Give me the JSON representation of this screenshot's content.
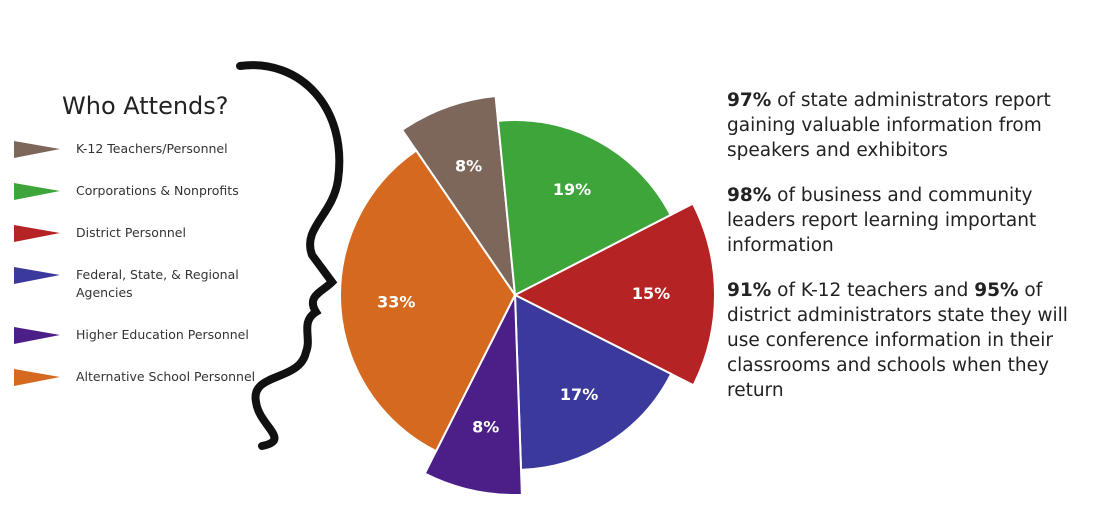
{
  "chart_data": {
    "type": "pie",
    "title": "Who Attends?",
    "categories": [
      "K-12 Teachers/Personnel",
      "Corporations  & Nonprofits",
      "District Personnel",
      "Federal, State, & Regional Agencies",
      "Higher Education Personnel",
      "Alternative School Personnel"
    ],
    "values": [
      8,
      19,
      15,
      17,
      8,
      33
    ],
    "value_labels": [
      "8%",
      "19%",
      "15%",
      "17%",
      "8%",
      "33%"
    ],
    "colors": [
      "#7d675a",
      "#3da53a",
      "#b52325",
      "#3b3a9c",
      "#4c1f88",
      "#d4691f"
    ]
  },
  "statements": [
    [
      {
        "text": "97%",
        "bold": true
      },
      {
        "text": " of state administrators report gaining valuable information from speakers and exhibitors",
        "bold": false
      }
    ],
    [
      {
        "text": "98%",
        "bold": true
      },
      {
        "text": " of business and community leaders report learning important information",
        "bold": false
      }
    ],
    [
      {
        "text": "91%",
        "bold": true
      },
      {
        "text": " of K-12 teachers and ",
        "bold": false
      },
      {
        "text": "95%",
        "bold": true
      },
      {
        "text": " of district administrators state they will use conference information in their classrooms and schools when they return",
        "bold": false
      }
    ]
  ]
}
